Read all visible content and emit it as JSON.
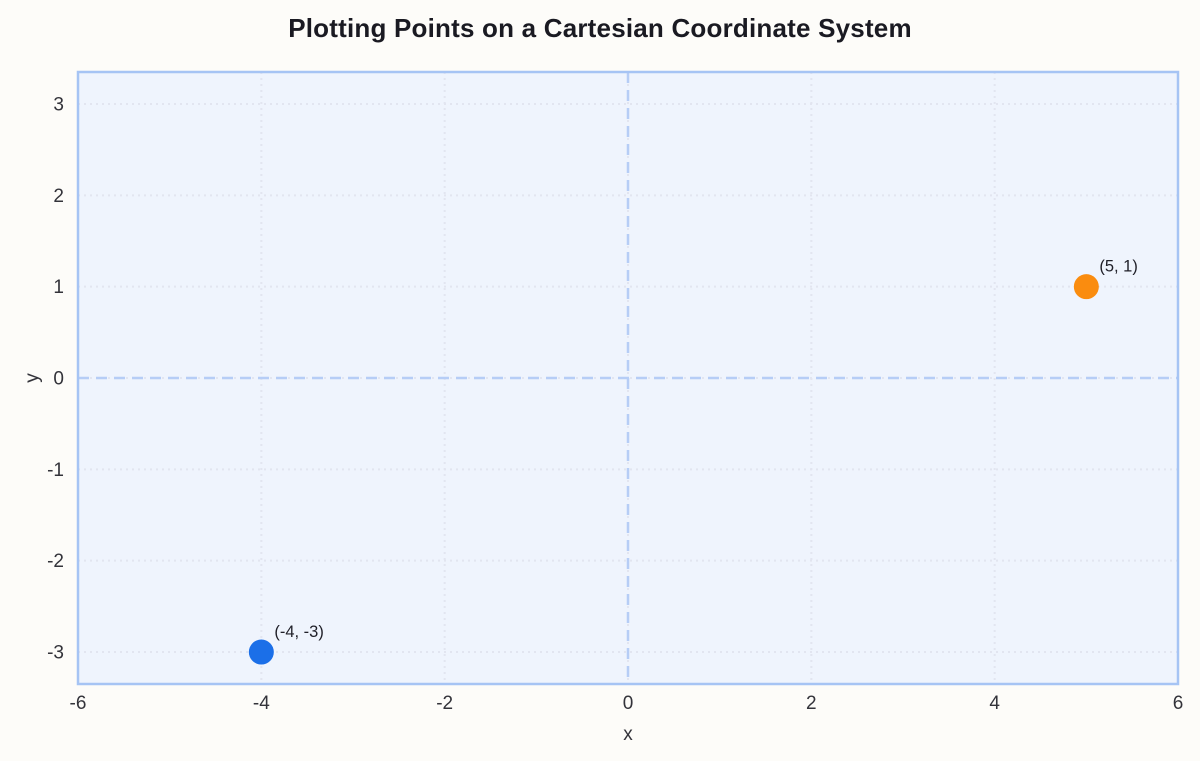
{
  "chart_data": {
    "type": "scatter",
    "title": "Plotting Points on a Cartesian Coordinate System",
    "xlabel": "x",
    "ylabel": "y",
    "xlim": [
      -6,
      6
    ],
    "ylim": [
      -3.35,
      3.35
    ],
    "xticks": [
      "-6",
      "-4",
      "-2",
      "0",
      "2",
      "4",
      "6"
    ],
    "xtick_values": [
      -6,
      -4,
      -2,
      0,
      2,
      4,
      6
    ],
    "yticks": [
      "-3",
      "-2",
      "-1",
      "0",
      "1",
      "2",
      "3"
    ],
    "ytick_values": [
      -3,
      -2,
      -1,
      0,
      1,
      2,
      3
    ],
    "grid": "dotted",
    "zero_axes": "dashed",
    "legend": "none",
    "points": [
      {
        "x": -4,
        "y": -3,
        "label": "(-4, -3)",
        "color": "#1b6fe8"
      },
      {
        "x": 5,
        "y": 1,
        "label": "(5, 1)",
        "color": "#fa8c0f"
      }
    ]
  },
  "colors": {
    "page_background": "#fdfcf9",
    "plot_background": "#eff4fd",
    "plot_border": "#a6c4f4",
    "zero_axis": "#b6cdf6",
    "gridline": "#e2e5f0",
    "title_text": "#1a1a22",
    "tick_text": "#33333a",
    "annotation_text": "#1f1f28"
  }
}
